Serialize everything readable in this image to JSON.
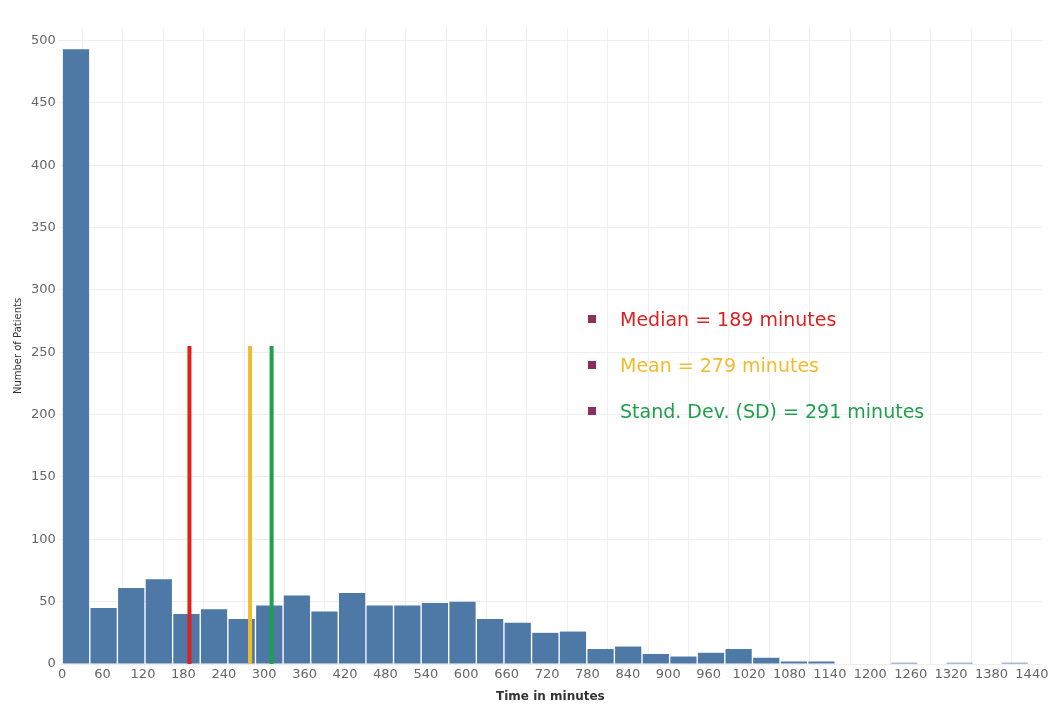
{
  "chart_data": {
    "type": "histogram",
    "xlabel": "Time in minutes",
    "ylabel": "Number of Patients",
    "bins": [
      0,
      41,
      82,
      123,
      164,
      205,
      246,
      287,
      328,
      369,
      410,
      451,
      492,
      533,
      574,
      615,
      656,
      697,
      738,
      779,
      820,
      861,
      902,
      943,
      984,
      1025,
      1066,
      1107,
      1148,
      1189,
      1230,
      1271,
      1312,
      1353,
      1394,
      1435
    ],
    "values": [
      493,
      45,
      61,
      68,
      40,
      44,
      36,
      47,
      55,
      42,
      57,
      47,
      47,
      49,
      50,
      36,
      33,
      25,
      26,
      12,
      14,
      8,
      6,
      9,
      12,
      5,
      2,
      2,
      0,
      0,
      1,
      0,
      1,
      0,
      1
    ],
    "color": "#4e79a7",
    "xlim": [
      -5,
      1455
    ],
    "xticks": [
      0,
      60,
      120,
      180,
      240,
      300,
      360,
      420,
      480,
      540,
      600,
      660,
      720,
      780,
      840,
      900,
      960,
      1020,
      1080,
      1140,
      1200,
      1260,
      1320,
      1380,
      1440
    ],
    "ylim": [
      0,
      510
    ],
    "yticks": [
      0,
      50,
      100,
      150,
      200,
      250,
      300,
      350,
      400,
      450,
      500
    ],
    "grid": true,
    "legend": false,
    "ref_lines": [
      {
        "axis": "x",
        "value": 189,
        "color": "#e02020"
      },
      {
        "axis": "x",
        "value": 279,
        "color": "#f0bc2e"
      },
      {
        "axis": "x",
        "value": 311,
        "color": "#1fa04c"
      }
    ],
    "annotations": [
      "Median = 189 minutes",
      "Mean = 279 minutes",
      "Stand. Dev. (SD) = 291 minutes"
    ]
  }
}
